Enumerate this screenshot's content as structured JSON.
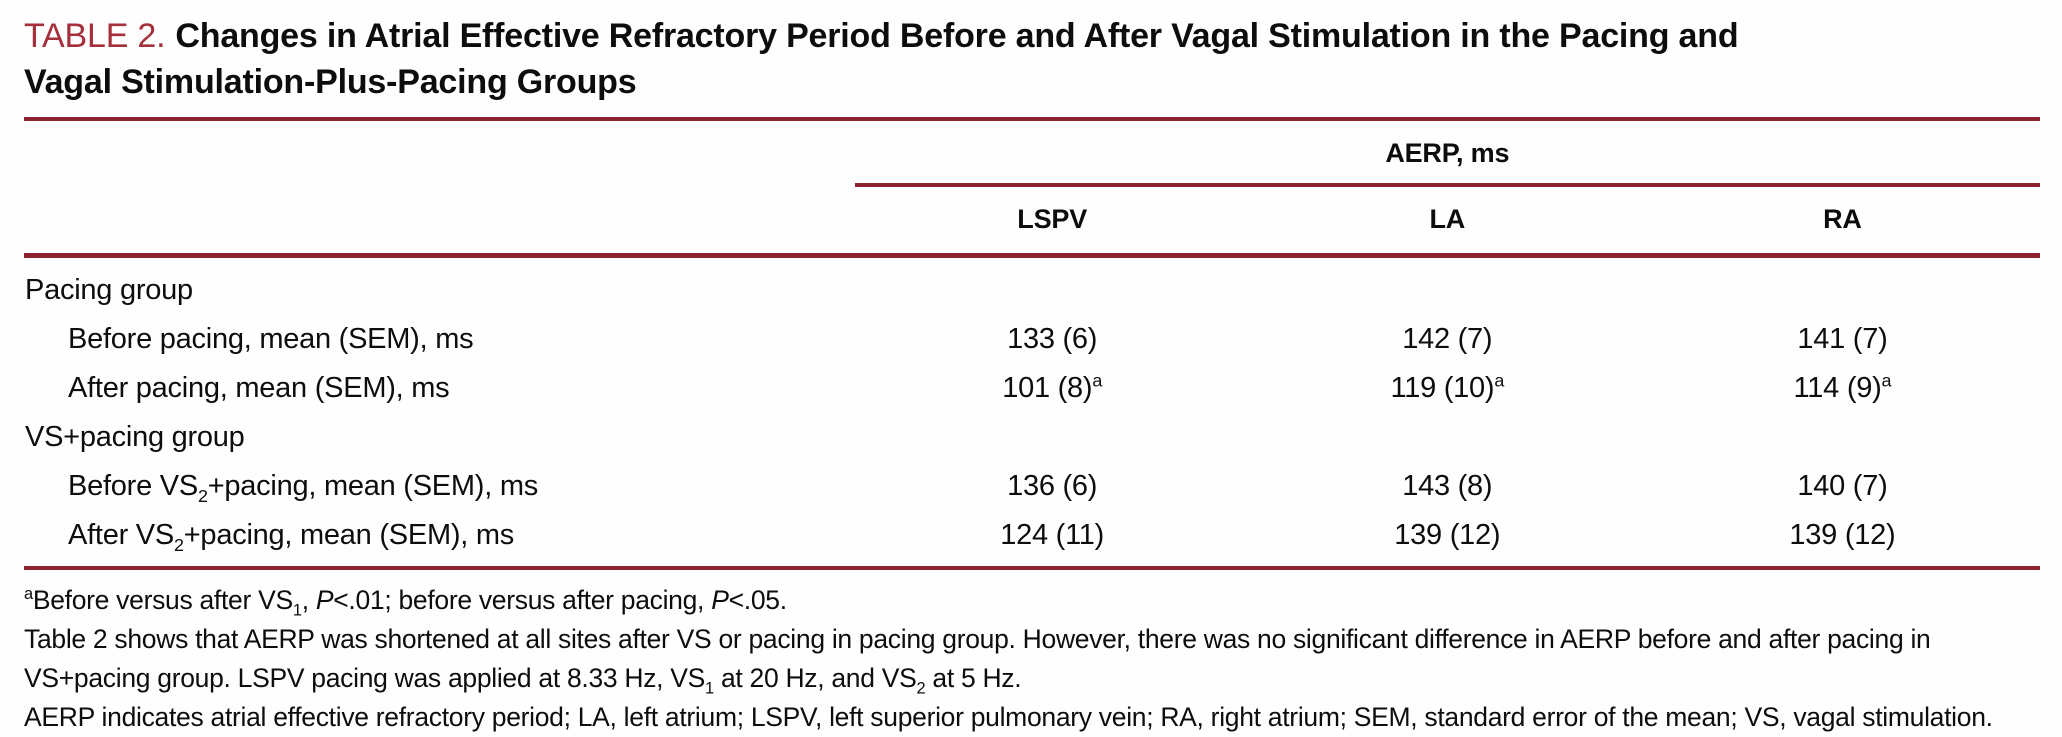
{
  "colors": {
    "rule_maroon": "#8b2333",
    "tag_red": "#a5303c",
    "text": "#0d0d0d"
  },
  "title": {
    "tag": "TABLE 2.",
    "lines": [
      "Changes in Atrial Effective Refractory Period Before and After Vagal Stimulation in the Pacing and",
      "Vagal Stimulation-Plus-Pacing Groups"
    ]
  },
  "table": {
    "spanner": "AERP, ms",
    "columns": [
      "LSPV",
      "LA",
      "RA"
    ],
    "rows": [
      {
        "indent": false,
        "label": [
          [
            "Pacing group",
            ""
          ]
        ],
        "cells": []
      },
      {
        "indent": true,
        "label": [
          [
            "Before pacing, mean (SEM), ms",
            ""
          ]
        ],
        "cells": [
          [
            [
              "133 (6)",
              ""
            ]
          ],
          [
            [
              "142 (7)",
              ""
            ]
          ],
          [
            [
              "141 (7)",
              ""
            ]
          ]
        ]
      },
      {
        "indent": true,
        "label": [
          [
            "After pacing, mean (SEM), ms",
            ""
          ]
        ],
        "cells": [
          [
            [
              "101 (8)",
              ""
            ],
            [
              "a",
              "sup"
            ]
          ],
          [
            [
              "119 (10)",
              ""
            ],
            [
              "a",
              "sup"
            ]
          ],
          [
            [
              "114 (9)",
              ""
            ],
            [
              "a",
              "sup"
            ]
          ]
        ]
      },
      {
        "indent": false,
        "label": [
          [
            "VS+pacing group",
            ""
          ]
        ],
        "cells": []
      },
      {
        "indent": true,
        "label": [
          [
            "Before VS",
            ""
          ],
          [
            "2",
            "sub"
          ],
          [
            "+pacing, mean (SEM), ms",
            ""
          ]
        ],
        "cells": [
          [
            [
              "136 (6)",
              ""
            ]
          ],
          [
            [
              "143 (8)",
              ""
            ]
          ],
          [
            [
              "140 (7)",
              ""
            ]
          ]
        ]
      },
      {
        "indent": true,
        "label": [
          [
            "After VS",
            ""
          ],
          [
            "2",
            "sub"
          ],
          [
            "+pacing, mean (SEM), ms",
            ""
          ]
        ],
        "cells": [
          [
            [
              "124 (11)",
              ""
            ]
          ],
          [
            [
              "139 (12)",
              ""
            ]
          ],
          [
            [
              "139 (12)",
              ""
            ]
          ]
        ]
      }
    ]
  },
  "footnotes": [
    [
      [
        "a",
        "sup"
      ],
      [
        "Before versus after VS",
        ""
      ],
      [
        "1",
        "sub"
      ],
      [
        ", ",
        ""
      ],
      [
        "P",
        "i"
      ],
      [
        "<.01; before versus after pacing, ",
        ""
      ],
      [
        "P",
        "i"
      ],
      [
        "<.05.",
        ""
      ]
    ],
    [
      [
        "Table 2 shows that AERP was shortened at all sites after VS or pacing in pacing group. However, there was no significant difference in AERP before and after pacing in VS+pacing group. LSPV pacing was applied at 8.33 Hz, VS",
        ""
      ],
      [
        "1",
        "sub"
      ],
      [
        " at 20 Hz, and VS",
        ""
      ],
      [
        "2",
        "sub"
      ],
      [
        " at 5 Hz.",
        ""
      ]
    ],
    [
      [
        "AERP indicates atrial effective refractory period; LA, left atrium; LSPV, left superior pulmonary vein; RA, right atrium; SEM, standard error of the mean; VS, vagal stimulation.",
        ""
      ]
    ]
  ]
}
